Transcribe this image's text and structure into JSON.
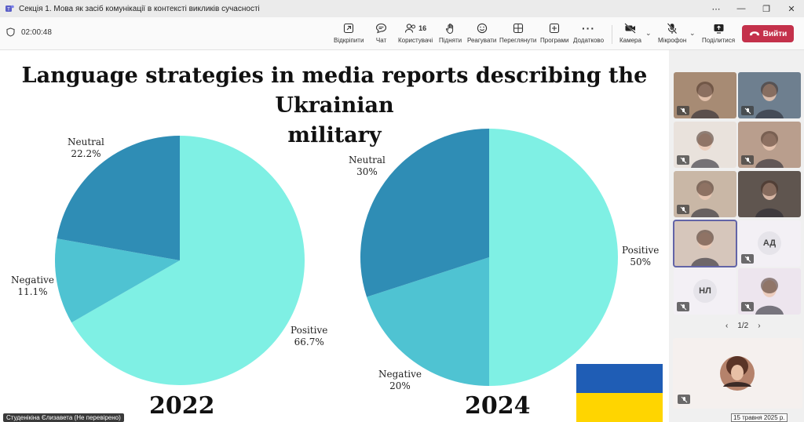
{
  "window": {
    "title": "Секція 1. Мова як засіб комунікації в контексті викликів сучасності",
    "more_icon": "ellipsis-icon",
    "minimize": "—",
    "restore": "❐",
    "close": "✕"
  },
  "toolbar": {
    "timer": "02:00:48",
    "undock_label": "Відкріпити",
    "chat_label": "Чат",
    "people_label": "Користувачі",
    "people_count": "16",
    "raise_label": "Підняти",
    "react_label": "Реагувати",
    "view_label": "Переглянути",
    "apps_label": "Програми",
    "more_label": "Додатково",
    "camera_label": "Камера",
    "mic_label": "Мікрофон",
    "share_label": "Поділитися",
    "leave_label": "Вийти",
    "colors": {
      "leave": "#c4314b"
    }
  },
  "slide": {
    "title_line1": "Language strategies in media reports describing the Ukrainian",
    "title_line2": "military",
    "presenter_name": "Студенікіна Єлизавета (Не перевірено)",
    "flag_colors": [
      "#1f5db5",
      "#ffd500"
    ]
  },
  "chart_data": [
    {
      "type": "pie",
      "title": "2022",
      "categories": [
        "Positive",
        "Negative",
        "Neutral"
      ],
      "values": [
        66.7,
        11.1,
        22.2
      ],
      "labels": [
        "66.7%",
        "11.1%",
        "22.2%"
      ],
      "colors": [
        "#7ff0e4",
        "#4fc3d2",
        "#2f8db5"
      ]
    },
    {
      "type": "pie",
      "title": "2024",
      "categories": [
        "Positive",
        "Negative",
        "Neutral"
      ],
      "values": [
        50,
        20,
        30
      ],
      "labels": [
        "50%",
        "20%",
        "30%"
      ],
      "colors": [
        "#7ff0e4",
        "#4fc3d2",
        "#2f8db5"
      ]
    }
  ],
  "participants": {
    "tiles": [
      {
        "type": "video",
        "bg": "#a78b74",
        "muted": true
      },
      {
        "type": "video",
        "bg": "#6e7f8f",
        "muted": true
      },
      {
        "type": "video",
        "bg": "#e9e2dc",
        "muted": true
      },
      {
        "type": "video",
        "bg": "#b99e8d",
        "muted": true
      },
      {
        "type": "video",
        "bg": "#c9b7a6",
        "muted": true
      },
      {
        "type": "video",
        "bg": "#5f554f",
        "muted": false
      },
      {
        "type": "video",
        "bg": "#d6c6bb",
        "muted": false,
        "selected": true
      },
      {
        "type": "initials",
        "initials": "АД",
        "bg": "#f3f0f5",
        "muted": true
      },
      {
        "type": "initials",
        "initials": "НЛ",
        "bg": "#f3f0f5",
        "muted": true
      },
      {
        "type": "video",
        "bg": "#ede5ee",
        "muted": true
      }
    ],
    "page_indicator": "1/2",
    "date_tooltip": "15 травня 2025 р."
  }
}
